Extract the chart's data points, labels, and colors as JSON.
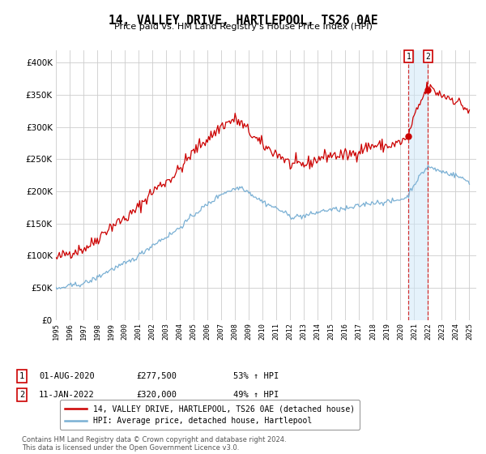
{
  "title": "14, VALLEY DRIVE, HARTLEPOOL, TS26 0AE",
  "subtitle": "Price paid vs. HM Land Registry's House Price Index (HPI)",
  "red_color": "#cc0000",
  "blue_color": "#7ab0d4",
  "background_color": "#ffffff",
  "grid_color": "#cccccc",
  "legend_entries": [
    "14, VALLEY DRIVE, HARTLEPOOL, TS26 0AE (detached house)",
    "HPI: Average price, detached house, Hartlepool"
  ],
  "annotation1_date": "01-AUG-2020",
  "annotation1_price": "£277,500",
  "annotation1_hpi": "53% ↑ HPI",
  "annotation2_date": "11-JAN-2022",
  "annotation2_price": "£320,000",
  "annotation2_hpi": "49% ↑ HPI",
  "footer": "Contains HM Land Registry data © Crown copyright and database right 2024.\nThis data is licensed under the Open Government Licence v3.0.",
  "ylim": [
    0,
    420000
  ],
  "yticks": [
    0,
    50000,
    100000,
    150000,
    200000,
    250000,
    300000,
    350000,
    400000
  ]
}
